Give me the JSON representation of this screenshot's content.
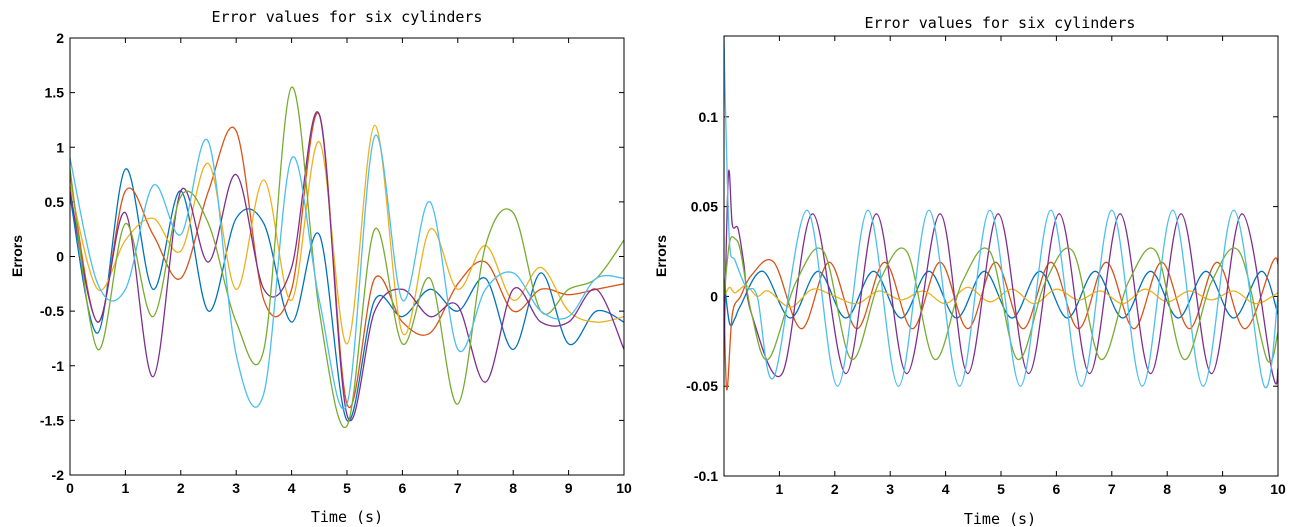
{
  "chart_data": [
    {
      "type": "line",
      "title": "Error values for six cylinders",
      "xlabel": "Time (s)",
      "ylabel": "Errors",
      "xlim": [
        0,
        10
      ],
      "ylim": [
        -2,
        2
      ],
      "xticks": [
        0,
        1,
        2,
        3,
        4,
        5,
        6,
        7,
        8,
        9,
        10
      ],
      "xtick_labels": [
        "0",
        "1",
        "2",
        "3",
        "4",
        "5",
        "6",
        "7",
        "8",
        "9",
        "10"
      ],
      "yticks": [
        -2,
        -1.5,
        -1,
        -0.5,
        0,
        0.5,
        1,
        1.5,
        2
      ],
      "ytick_labels": [
        "-2",
        "-1.5",
        "-1",
        "-0.5",
        "0",
        "0.5",
        "1",
        "1.5",
        "2"
      ],
      "grid": false,
      "series": [
        {
          "color": "#0072BD",
          "x": [
            0,
            0.5,
            1,
            1.5,
            2,
            2.5,
            3,
            3.5,
            4,
            4.5,
            5,
            5.5,
            6,
            6.5,
            7,
            7.5,
            8,
            8.5,
            9,
            9.5,
            10
          ],
          "y": [
            0.55,
            -0.7,
            0.8,
            -0.3,
            0.6,
            -0.5,
            0.35,
            0.3,
            -0.6,
            0.2,
            -1.5,
            -0.4,
            -0.55,
            -0.3,
            -0.5,
            -0.2,
            -0.85,
            -0.15,
            -0.8,
            -0.5,
            -0.6
          ]
        },
        {
          "color": "#D95319",
          "x": [
            0,
            0.5,
            1,
            1.5,
            2,
            2.5,
            3,
            3.5,
            4,
            4.5,
            5,
            5.5,
            6,
            6.5,
            7,
            7.5,
            8,
            8.5,
            9,
            9.5,
            10
          ],
          "y": [
            0.75,
            -0.6,
            0.6,
            0.2,
            -0.2,
            0.6,
            1.15,
            -0.4,
            -0.3,
            1.3,
            -1.35,
            -0.2,
            -0.6,
            -0.7,
            -0.25,
            -0.05,
            -0.5,
            -0.3,
            -0.35,
            -0.3,
            -0.25
          ]
        },
        {
          "color": "#EDB120",
          "x": [
            0,
            0.5,
            1,
            1.5,
            2,
            2.5,
            3,
            3.5,
            4,
            4.5,
            5,
            5.5,
            6,
            6.5,
            7,
            7.5,
            8,
            8.5,
            9,
            9.5,
            10
          ],
          "y": [
            0.65,
            -0.3,
            0.15,
            0.35,
            0.05,
            0.85,
            -0.3,
            0.7,
            -0.4,
            1.05,
            -0.8,
            1.2,
            -0.7,
            0.25,
            -0.3,
            0.1,
            -0.4,
            -0.1,
            -0.5,
            -0.6,
            -0.55
          ]
        },
        {
          "color": "#7E2F8E",
          "x": [
            0,
            0.5,
            1,
            1.5,
            2,
            2.5,
            3,
            3.5,
            4,
            4.5,
            5,
            5.5,
            6,
            6.5,
            7,
            7.5,
            8,
            8.5,
            9,
            9.5,
            10
          ],
          "y": [
            0.6,
            -0.6,
            0.4,
            -1.1,
            0.6,
            -0.05,
            0.75,
            -0.3,
            -0.1,
            1.3,
            -1.45,
            -0.5,
            -0.3,
            -0.55,
            -0.45,
            -1.15,
            -0.3,
            -0.6,
            -0.6,
            -0.3,
            -0.85
          ]
        },
        {
          "color": "#77AC30",
          "x": [
            0,
            0.5,
            1,
            1.5,
            2,
            2.5,
            3,
            3.5,
            4,
            4.5,
            5,
            5.5,
            6,
            6.5,
            7,
            7.5,
            8,
            8.5,
            9,
            9.5,
            10
          ],
          "y": [
            0.8,
            -0.85,
            0.3,
            -0.55,
            0.55,
            0.3,
            -0.6,
            -0.85,
            1.55,
            -0.5,
            -1.55,
            0.25,
            -0.8,
            -0.2,
            -1.35,
            0.1,
            0.4,
            -0.5,
            -0.3,
            -0.2,
            0.15
          ]
        },
        {
          "color": "#4DBEEE",
          "x": [
            0,
            0.5,
            1,
            1.5,
            2,
            2.5,
            3,
            3.5,
            4,
            4.5,
            5,
            5.5,
            6,
            6.5,
            7,
            7.5,
            8,
            8.5,
            9,
            9.5,
            10
          ],
          "y": [
            0.9,
            -0.25,
            -0.3,
            0.65,
            0.2,
            1.05,
            -0.9,
            -1.25,
            0.9,
            -0.4,
            -1.35,
            1.1,
            -0.4,
            0.5,
            -0.85,
            -0.3,
            -0.15,
            -0.5,
            -0.55,
            -0.2,
            -0.2
          ]
        }
      ]
    },
    {
      "type": "line",
      "title": "Error values for six cylinders",
      "xlabel": "Time (s)",
      "ylabel": "Errors",
      "xlim": [
        0,
        10
      ],
      "ylim": [
        -0.1,
        0.145
      ],
      "xticks": [
        1,
        2,
        3,
        4,
        5,
        6,
        7,
        8,
        9,
        10
      ],
      "xtick_labels": [
        "1",
        "2",
        "3",
        "4",
        "5",
        "6",
        "7",
        "8",
        "9",
        "10"
      ],
      "yticks": [
        -0.1,
        -0.05,
        0,
        0.05,
        0.1
      ],
      "ytick_labels": [
        "-0.1",
        "-0.05",
        "0",
        "0.05",
        "0.1"
      ],
      "grid": false,
      "series": [
        {
          "color": "#0072BD",
          "x": [
            0,
            0.1,
            0.2,
            0.3,
            0.7,
            1.2,
            1.7,
            2.2,
            2.7,
            3.2,
            3.7,
            4.2,
            4.7,
            5.2,
            5.7,
            6.2,
            6.7,
            7.2,
            7.7,
            8.2,
            8.7,
            9.2,
            9.7,
            10
          ],
          "y": [
            0.01,
            -0.015,
            -0.012,
            -0.005,
            0.014,
            -0.012,
            0.014,
            -0.012,
            0.014,
            -0.012,
            0.014,
            -0.012,
            0.014,
            -0.012,
            0.014,
            -0.012,
            0.014,
            -0.012,
            0.014,
            -0.012,
            0.014,
            -0.012,
            0.014,
            -0.01
          ]
        },
        {
          "color": "#D95319",
          "x": [
            0,
            0.05,
            0.15,
            0.3,
            0.5,
            0.9,
            1.4,
            1.9,
            2.4,
            2.9,
            3.4,
            3.9,
            4.4,
            4.9,
            5.4,
            5.9,
            6.4,
            6.9,
            7.4,
            7.9,
            8.4,
            8.9,
            9.4,
            9.9,
            10
          ],
          "y": [
            0.0,
            -0.052,
            -0.01,
            0.0,
            0.012,
            0.019,
            -0.018,
            0.019,
            -0.018,
            0.019,
            -0.018,
            0.019,
            -0.018,
            0.019,
            -0.018,
            0.019,
            -0.018,
            0.019,
            -0.018,
            0.019,
            -0.018,
            0.019,
            -0.018,
            0.019,
            0.018
          ]
        },
        {
          "color": "#EDB120",
          "x": [
            0,
            0.1,
            0.2,
            0.4,
            0.6,
            0.8,
            1.2,
            1.6,
            2.0,
            2.4,
            2.8,
            3.2,
            3.6,
            4.0,
            4.4,
            4.8,
            5.2,
            5.6,
            6.0,
            6.4,
            6.8,
            7.2,
            7.6,
            8.0,
            8.4,
            8.8,
            9.2,
            9.6,
            10
          ],
          "y": [
            0.0,
            0.005,
            0.002,
            0.006,
            0.0,
            0.003,
            -0.006,
            0.004,
            0.0,
            -0.004,
            0.003,
            -0.002,
            0.003,
            -0.004,
            0.005,
            -0.003,
            0.004,
            -0.004,
            0.004,
            -0.002,
            0.003,
            -0.004,
            0.004,
            -0.003,
            0.003,
            -0.002,
            0.003,
            -0.004,
            0.002
          ]
        },
        {
          "color": "#7E2F8E",
          "x": [
            0,
            0.08,
            0.15,
            0.25,
            0.35,
            0.5,
            1.05,
            1.6,
            2.2,
            2.75,
            3.3,
            3.9,
            4.4,
            4.95,
            5.5,
            6.05,
            6.6,
            7.15,
            7.7,
            8.25,
            8.8,
            9.35,
            9.9,
            10
          ],
          "y": [
            -0.03,
            0.068,
            0.04,
            0.038,
            0.02,
            -0.01,
            -0.043,
            0.046,
            -0.043,
            0.046,
            -0.043,
            0.046,
            -0.043,
            0.046,
            -0.043,
            0.046,
            -0.043,
            0.046,
            -0.043,
            0.046,
            -0.043,
            0.046,
            -0.043,
            -0.04
          ]
        },
        {
          "color": "#77AC30",
          "x": [
            0,
            0.1,
            0.2,
            0.3,
            0.5,
            0.8,
            1.3,
            1.8,
            2.3,
            2.8,
            3.3,
            3.8,
            4.3,
            4.8,
            5.3,
            5.8,
            6.3,
            6.8,
            7.3,
            7.8,
            8.3,
            8.8,
            9.3,
            9.8,
            10
          ],
          "y": [
            0.0,
            0.03,
            0.032,
            0.025,
            -0.01,
            -0.035,
            0.008,
            0.025,
            -0.035,
            0.008,
            0.025,
            -0.035,
            0.008,
            0.025,
            -0.035,
            0.008,
            0.025,
            -0.035,
            0.008,
            0.025,
            -0.035,
            0.008,
            0.025,
            -0.035,
            -0.02
          ]
        },
        {
          "color": "#4DBEEE",
          "x": [
            0,
            0.03,
            0.1,
            0.2,
            0.4,
            0.6,
            0.9,
            1.5,
            2.05,
            2.6,
            3.15,
            3.7,
            4.25,
            4.8,
            5.35,
            5.9,
            6.45,
            7.0,
            7.55,
            8.1,
            8.65,
            9.2,
            9.75,
            10
          ],
          "y": [
            0.145,
            0.1,
            0.03,
            0.02,
            0.005,
            0.0,
            -0.045,
            0.048,
            -0.05,
            0.048,
            -0.05,
            0.048,
            -0.05,
            0.048,
            -0.05,
            0.048,
            -0.05,
            0.048,
            -0.05,
            0.048,
            -0.05,
            0.048,
            -0.05,
            0.0
          ]
        }
      ]
    }
  ]
}
